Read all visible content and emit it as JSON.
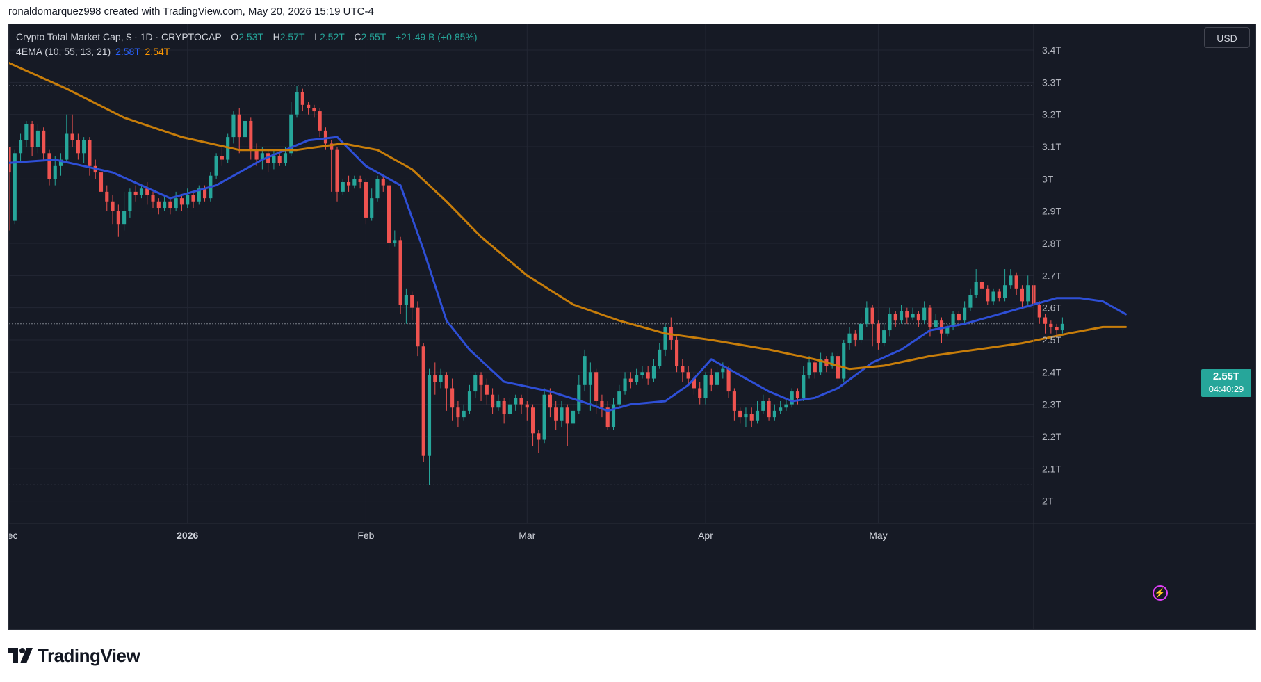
{
  "header": {
    "credit": "ronaldomarquez998 created with TradingView.com, May 20, 2026 15:19 UTC-4"
  },
  "legend": {
    "symbol": "Crypto Total Market Cap, $ · 1D · CRYPTOCAP",
    "o_label": "O",
    "o_value": "2.53T",
    "h_label": "H",
    "h_value": "2.57T",
    "l_label": "L",
    "l_value": "2.52T",
    "c_label": "C",
    "c_value": "2.55T",
    "change": "+21.49 B (+0.85%)",
    "indicator_label": "4EMA (10, 55, 13, 21)",
    "ema_fast_value": "2.58T",
    "ema_slow_value": "2.54T"
  },
  "currency_button": "USD",
  "price_tag": {
    "value": "2.55T",
    "countdown": "04:40:29"
  },
  "logo_text": "TradingView",
  "colors": {
    "background": "#161a25",
    "grid": "#232734",
    "up": "#26a69a",
    "down": "#ef5350",
    "ema_fast": "#2e4fd6",
    "ema_slow": "#c77d0a",
    "axis_text": "#b2b5be"
  },
  "chart_data": {
    "type": "candlestick",
    "title": "Crypto Total Market Cap, $ · 1D · CRYPTOCAP",
    "ylabel": "",
    "xlabel": "",
    "unit": "T",
    "ylim": [
      1.93,
      3.48
    ],
    "y_ticks": [
      "3.4T",
      "3.3T",
      "3.2T",
      "3.1T",
      "3T",
      "2.9T",
      "2.8T",
      "2.7T",
      "2.6T",
      "2.5T",
      "2.4T",
      "2.3T",
      "2.2T",
      "2.1T",
      "2T"
    ],
    "y_tick_values": [
      3.4,
      3.3,
      3.2,
      3.1,
      3.0,
      2.9,
      2.8,
      2.7,
      2.6,
      2.5,
      2.4,
      2.3,
      2.2,
      2.1,
      2.0
    ],
    "x_labels": [
      {
        "label": "Dec",
        "date": "2025-12-01"
      },
      {
        "label": "2026",
        "date": "2026-01-01"
      },
      {
        "label": "Feb",
        "date": "2026-02-01"
      },
      {
        "label": "Mar",
        "date": "2026-03-01"
      },
      {
        "label": "Apr",
        "date": "2026-04-01"
      },
      {
        "label": "May",
        "date": "2026-05-01"
      }
    ],
    "xlim": [
      "2025-12-01",
      "2026-05-28"
    ],
    "start_date": "2025-12-01",
    "dotted_levels": [
      3.29,
      2.05
    ],
    "last_price_level": 2.55,
    "candles": [
      [
        3.1,
        3.02,
        3.04,
        2.84
      ],
      [
        2.87,
        3.08,
        3.09,
        2.86
      ],
      [
        3.08,
        3.12,
        3.14,
        3.05
      ],
      [
        3.12,
        3.17,
        3.18,
        3.1
      ],
      [
        3.17,
        3.1,
        3.18,
        3.07
      ],
      [
        3.1,
        3.15,
        3.17,
        3.08
      ],
      [
        3.15,
        3.08,
        3.16,
        3.06
      ],
      [
        3.08,
        3.0,
        3.09,
        2.98
      ],
      [
        3.0,
        3.04,
        3.07,
        2.98
      ],
      [
        3.04,
        3.06,
        3.08,
        3.01
      ],
      [
        3.06,
        3.14,
        3.2,
        3.05
      ],
      [
        3.14,
        3.12,
        3.2,
        3.1
      ],
      [
        3.12,
        3.08,
        3.14,
        3.06
      ],
      [
        3.08,
        3.12,
        3.13,
        3.05
      ],
      [
        3.12,
        3.04,
        3.13,
        3.01
      ],
      [
        3.04,
        3.02,
        3.06,
        3.0
      ],
      [
        3.02,
        2.96,
        3.03,
        2.92
      ],
      [
        2.96,
        2.93,
        2.98,
        2.9
      ],
      [
        2.93,
        2.9,
        2.95,
        2.86
      ],
      [
        2.9,
        2.86,
        2.92,
        2.82
      ],
      [
        2.86,
        2.9,
        2.96,
        2.84
      ],
      [
        2.9,
        2.96,
        2.97,
        2.88
      ],
      [
        2.96,
        2.95,
        2.98,
        2.93
      ],
      [
        2.95,
        2.97,
        2.98,
        2.94
      ],
      [
        2.97,
        2.95,
        2.99,
        2.92
      ],
      [
        2.95,
        2.93,
        2.96,
        2.91
      ],
      [
        2.93,
        2.91,
        2.94,
        2.89
      ],
      [
        2.91,
        2.93,
        2.95,
        2.9
      ],
      [
        2.93,
        2.91,
        2.94,
        2.89
      ],
      [
        2.91,
        2.94,
        2.96,
        2.9
      ],
      [
        2.94,
        2.92,
        2.95,
        2.9
      ],
      [
        2.92,
        2.95,
        2.97,
        2.91
      ],
      [
        2.95,
        2.93,
        2.96,
        2.91
      ],
      [
        2.93,
        2.97,
        2.98,
        2.92
      ],
      [
        2.97,
        2.94,
        2.98,
        2.93
      ],
      [
        2.94,
        3.01,
        3.02,
        2.93
      ],
      [
        3.01,
        3.07,
        3.08,
        3.0
      ],
      [
        3.07,
        3.06,
        3.1,
        3.04
      ],
      [
        3.06,
        3.13,
        3.14,
        3.05
      ],
      [
        3.13,
        3.2,
        3.21,
        3.11
      ],
      [
        3.2,
        3.13,
        3.22,
        3.08
      ],
      [
        3.13,
        3.18,
        3.2,
        3.11
      ],
      [
        3.18,
        3.09,
        3.19,
        3.06
      ],
      [
        3.09,
        3.06,
        3.11,
        3.04
      ],
      [
        3.06,
        3.08,
        3.1,
        3.03
      ],
      [
        3.08,
        3.05,
        3.09,
        3.02
      ],
      [
        3.05,
        3.07,
        3.09,
        3.03
      ],
      [
        3.07,
        3.05,
        3.08,
        3.04
      ],
      [
        3.05,
        3.08,
        3.1,
        3.04
      ],
      [
        3.08,
        3.2,
        3.24,
        3.07
      ],
      [
        3.2,
        3.27,
        3.29,
        3.19
      ],
      [
        3.27,
        3.23,
        3.28,
        3.21
      ],
      [
        3.23,
        3.22,
        3.24,
        3.2
      ],
      [
        3.22,
        3.21,
        3.23,
        3.19
      ],
      [
        3.21,
        3.15,
        3.22,
        3.13
      ],
      [
        3.15,
        3.11,
        3.16,
        3.09
      ],
      [
        3.11,
        3.09,
        3.12,
        2.96
      ],
      [
        3.09,
        2.96,
        3.1,
        2.93
      ],
      [
        2.96,
        2.99,
        3.0,
        2.95
      ],
      [
        2.99,
        2.98,
        3.01,
        2.96
      ],
      [
        2.98,
        3.0,
        3.01,
        2.97
      ],
      [
        3.0,
        2.99,
        3.01,
        2.97
      ],
      [
        2.99,
        2.88,
        3.0,
        2.86
      ],
      [
        2.88,
        2.94,
        2.97,
        2.87
      ],
      [
        2.94,
        3.0,
        3.01,
        2.93
      ],
      [
        3.0,
        2.98,
        3.01,
        2.96
      ],
      [
        2.98,
        2.8,
        2.99,
        2.78
      ],
      [
        2.8,
        2.81,
        2.84,
        2.79
      ],
      [
        2.81,
        2.61,
        2.82,
        2.58
      ],
      [
        2.61,
        2.64,
        2.66,
        2.55
      ],
      [
        2.64,
        2.6,
        2.65,
        2.56
      ],
      [
        2.6,
        2.48,
        2.62,
        2.45
      ],
      [
        2.48,
        2.14,
        2.49,
        2.12
      ],
      [
        2.14,
        2.39,
        2.41,
        2.05
      ],
      [
        2.39,
        2.37,
        2.43,
        2.33
      ],
      [
        2.37,
        2.39,
        2.41,
        2.35
      ],
      [
        2.39,
        2.35,
        2.4,
        2.28
      ],
      [
        2.35,
        2.29,
        2.38,
        2.25
      ],
      [
        2.29,
        2.26,
        2.31,
        2.23
      ],
      [
        2.26,
        2.28,
        2.3,
        2.25
      ],
      [
        2.28,
        2.34,
        2.36,
        2.27
      ],
      [
        2.34,
        2.39,
        2.4,
        2.32
      ],
      [
        2.39,
        2.36,
        2.4,
        2.31
      ],
      [
        2.36,
        2.33,
        2.38,
        2.3
      ],
      [
        2.33,
        2.29,
        2.35,
        2.27
      ],
      [
        2.29,
        2.31,
        2.33,
        2.28
      ],
      [
        2.31,
        2.27,
        2.32,
        2.24
      ],
      [
        2.27,
        2.3,
        2.32,
        2.26
      ],
      [
        2.3,
        2.32,
        2.33,
        2.28
      ],
      [
        2.32,
        2.3,
        2.33,
        2.27
      ],
      [
        2.3,
        2.29,
        2.31,
        2.25
      ],
      [
        2.29,
        2.21,
        2.3,
        2.17
      ],
      [
        2.21,
        2.19,
        2.22,
        2.15
      ],
      [
        2.19,
        2.33,
        2.35,
        2.18
      ],
      [
        2.33,
        2.29,
        2.35,
        2.26
      ],
      [
        2.29,
        2.25,
        2.31,
        2.22
      ],
      [
        2.25,
        2.29,
        2.31,
        2.23
      ],
      [
        2.29,
        2.24,
        2.3,
        2.17
      ],
      [
        2.24,
        2.28,
        2.3,
        2.22
      ],
      [
        2.28,
        2.36,
        2.39,
        2.27
      ],
      [
        2.36,
        2.45,
        2.47,
        2.34
      ],
      [
        2.36,
        2.4,
        2.43,
        2.28
      ],
      [
        2.4,
        2.31,
        2.41,
        2.27
      ],
      [
        2.31,
        2.29,
        2.33,
        2.26
      ],
      [
        2.29,
        2.23,
        2.31,
        2.22
      ],
      [
        2.23,
        2.3,
        2.32,
        2.22
      ],
      [
        2.3,
        2.34,
        2.36,
        2.29
      ],
      [
        2.34,
        2.38,
        2.4,
        2.33
      ],
      [
        2.38,
        2.37,
        2.4,
        2.35
      ],
      [
        2.37,
        2.39,
        2.41,
        2.36
      ],
      [
        2.39,
        2.4,
        2.42,
        2.38
      ],
      [
        2.4,
        2.38,
        2.42,
        2.36
      ],
      [
        2.38,
        2.42,
        2.44,
        2.37
      ],
      [
        2.42,
        2.47,
        2.49,
        2.41
      ],
      [
        2.47,
        2.54,
        2.55,
        2.45
      ],
      [
        2.54,
        2.5,
        2.57,
        2.47
      ],
      [
        2.5,
        2.42,
        2.51,
        2.4
      ],
      [
        2.42,
        2.4,
        2.44,
        2.37
      ],
      [
        2.4,
        2.38,
        2.42,
        2.36
      ],
      [
        2.38,
        2.35,
        2.4,
        2.33
      ],
      [
        2.35,
        2.32,
        2.37,
        2.3
      ],
      [
        2.32,
        2.39,
        2.4,
        2.3
      ],
      [
        2.39,
        2.36,
        2.41,
        2.34
      ],
      [
        2.36,
        2.4,
        2.42,
        2.35
      ],
      [
        2.4,
        2.41,
        2.43,
        2.38
      ],
      [
        2.41,
        2.34,
        2.42,
        2.32
      ],
      [
        2.34,
        2.28,
        2.35,
        2.25
      ],
      [
        2.28,
        2.26,
        2.29,
        2.24
      ],
      [
        2.26,
        2.27,
        2.29,
        2.23
      ],
      [
        2.27,
        2.25,
        2.29,
        2.23
      ],
      [
        2.25,
        2.28,
        2.31,
        2.24
      ],
      [
        2.28,
        2.31,
        2.33,
        2.27
      ],
      [
        2.31,
        2.26,
        2.32,
        2.25
      ],
      [
        2.26,
        2.28,
        2.3,
        2.25
      ],
      [
        2.28,
        2.29,
        2.31,
        2.27
      ],
      [
        2.29,
        2.3,
        2.32,
        2.28
      ],
      [
        2.3,
        2.34,
        2.35,
        2.29
      ],
      [
        2.34,
        2.32,
        2.35,
        2.3
      ],
      [
        2.32,
        2.39,
        2.42,
        2.31
      ],
      [
        2.39,
        2.43,
        2.45,
        2.38
      ],
      [
        2.43,
        2.4,
        2.44,
        2.38
      ],
      [
        2.4,
        2.44,
        2.46,
        2.39
      ],
      [
        2.44,
        2.42,
        2.45,
        2.4
      ],
      [
        2.42,
        2.45,
        2.46,
        2.41
      ],
      [
        2.45,
        2.38,
        2.46,
        2.37
      ],
      [
        2.38,
        2.49,
        2.5,
        2.37
      ],
      [
        2.49,
        2.52,
        2.54,
        2.47
      ],
      [
        2.52,
        2.5,
        2.53,
        2.48
      ],
      [
        2.5,
        2.55,
        2.57,
        2.49
      ],
      [
        2.55,
        2.6,
        2.62,
        2.54
      ],
      [
        2.6,
        2.55,
        2.61,
        2.48
      ],
      [
        2.55,
        2.49,
        2.56,
        2.47
      ],
      [
        2.49,
        2.53,
        2.55,
        2.48
      ],
      [
        2.53,
        2.58,
        2.6,
        2.51
      ],
      [
        2.58,
        2.56,
        2.59,
        2.54
      ],
      [
        2.56,
        2.59,
        2.61,
        2.55
      ],
      [
        2.59,
        2.57,
        2.6,
        2.55
      ],
      [
        2.57,
        2.58,
        2.6,
        2.56
      ],
      [
        2.58,
        2.56,
        2.59,
        2.54
      ],
      [
        2.56,
        2.6,
        2.62,
        2.55
      ],
      [
        2.6,
        2.54,
        2.61,
        2.51
      ],
      [
        2.54,
        2.56,
        2.58,
        2.53
      ],
      [
        2.56,
        2.52,
        2.57,
        2.49
      ],
      [
        2.52,
        2.54,
        2.55,
        2.51
      ],
      [
        2.54,
        2.58,
        2.59,
        2.53
      ],
      [
        2.58,
        2.56,
        2.59,
        2.54
      ],
      [
        2.56,
        2.6,
        2.62,
        2.55
      ],
      [
        2.6,
        2.64,
        2.66,
        2.59
      ],
      [
        2.64,
        2.68,
        2.72,
        2.63
      ],
      [
        2.68,
        2.66,
        2.69,
        2.64
      ],
      [
        2.66,
        2.62,
        2.67,
        2.61
      ],
      [
        2.62,
        2.65,
        2.66,
        2.61
      ],
      [
        2.65,
        2.63,
        2.66,
        2.62
      ],
      [
        2.63,
        2.67,
        2.72,
        2.62
      ],
      [
        2.67,
        2.7,
        2.72,
        2.66
      ],
      [
        2.7,
        2.66,
        2.71,
        2.64
      ],
      [
        2.66,
        2.62,
        2.67,
        2.6
      ],
      [
        2.62,
        2.67,
        2.7,
        2.61
      ],
      [
        2.67,
        2.61,
        2.68,
        2.59
      ],
      [
        2.61,
        2.57,
        2.62,
        2.55
      ],
      [
        2.57,
        2.55,
        2.58,
        2.52
      ],
      [
        2.55,
        2.54,
        2.56,
        2.52
      ],
      [
        2.54,
        2.53,
        2.55,
        2.51
      ],
      [
        2.53,
        2.55,
        2.57,
        2.52
      ]
    ],
    "series": [
      {
        "name": "EMA 10",
        "color": "#2e4fd6",
        "values": [
          [
            0,
            3.05
          ],
          [
            8,
            3.06
          ],
          [
            18,
            3.02
          ],
          [
            28,
            2.94
          ],
          [
            36,
            2.98
          ],
          [
            44,
            3.06
          ],
          [
            52,
            3.12
          ],
          [
            57,
            3.13
          ],
          [
            62,
            3.04
          ],
          [
            68,
            2.98
          ],
          [
            72,
            2.78
          ],
          [
            76,
            2.56
          ],
          [
            80,
            2.47
          ],
          [
            86,
            2.37
          ],
          [
            94,
            2.34
          ],
          [
            101,
            2.3
          ],
          [
            104,
            2.28
          ],
          [
            108,
            2.3
          ],
          [
            114,
            2.31
          ],
          [
            118,
            2.36
          ],
          [
            122,
            2.44
          ],
          [
            126,
            2.4
          ],
          [
            132,
            2.34
          ],
          [
            136,
            2.31
          ],
          [
            140,
            2.32
          ],
          [
            144,
            2.35
          ],
          [
            150,
            2.43
          ],
          [
            155,
            2.47
          ],
          [
            160,
            2.53
          ],
          [
            166,
            2.55
          ],
          [
            172,
            2.58
          ],
          [
            178,
            2.61
          ],
          [
            182,
            2.63
          ],
          [
            186,
            2.63
          ],
          [
            190,
            2.62
          ],
          [
            194,
            2.58
          ]
        ]
      },
      {
        "name": "EMA 55",
        "color": "#c77d0a",
        "values": [
          [
            0,
            3.36
          ],
          [
            10,
            3.28
          ],
          [
            20,
            3.19
          ],
          [
            30,
            3.13
          ],
          [
            40,
            3.09
          ],
          [
            50,
            3.09
          ],
          [
            58,
            3.11
          ],
          [
            64,
            3.09
          ],
          [
            70,
            3.03
          ],
          [
            76,
            2.93
          ],
          [
            82,
            2.82
          ],
          [
            90,
            2.7
          ],
          [
            98,
            2.61
          ],
          [
            106,
            2.56
          ],
          [
            114,
            2.52
          ],
          [
            122,
            2.5
          ],
          [
            132,
            2.47
          ],
          [
            140,
            2.44
          ],
          [
            146,
            2.41
          ],
          [
            152,
            2.42
          ],
          [
            160,
            2.45
          ],
          [
            168,
            2.47
          ],
          [
            176,
            2.49
          ],
          [
            184,
            2.52
          ],
          [
            190,
            2.54
          ],
          [
            194,
            2.54
          ]
        ]
      }
    ]
  }
}
